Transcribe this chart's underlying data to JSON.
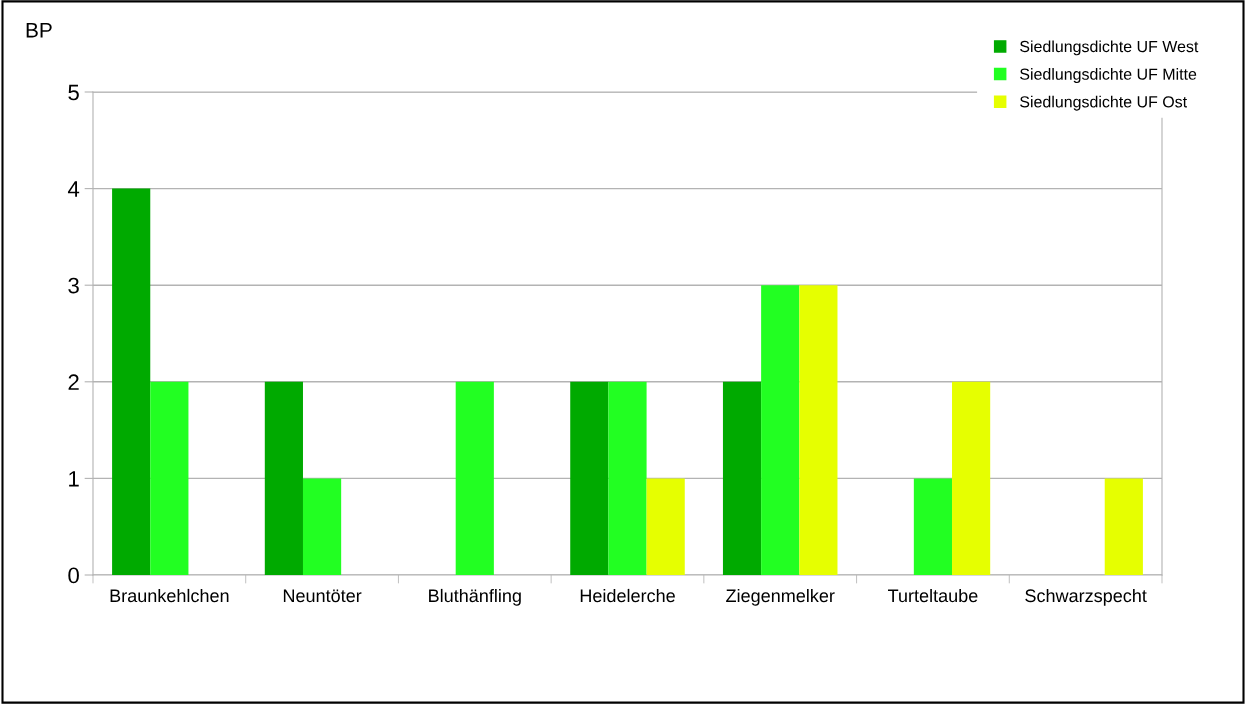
{
  "chart_data": {
    "type": "bar",
    "ylabel": "BP",
    "categories": [
      "Braunkehlchen",
      "Neuntöter",
      "Bluthänfling",
      "Heidelerche",
      "Ziegenmelker",
      "Turteltaube",
      "Schwarzspecht"
    ],
    "series": [
      {
        "name": "Siedlungsdichte UF West",
        "color": "#00aa00",
        "values": [
          4,
          2,
          0,
          2,
          2,
          0,
          0
        ]
      },
      {
        "name": "Siedlungsdichte UF Mitte",
        "color": "#22ff22",
        "values": [
          2,
          1,
          2,
          2,
          3,
          1,
          0
        ]
      },
      {
        "name": "Siedlungsdichte UF Ost",
        "color": "#e6ff00",
        "values": [
          0,
          0,
          0,
          1,
          3,
          2,
          1
        ]
      }
    ],
    "ylim": [
      0,
      5
    ],
    "yticks": [
      0,
      1,
      2,
      3,
      4,
      5
    ],
    "grid": "y",
    "legend": "top right"
  }
}
